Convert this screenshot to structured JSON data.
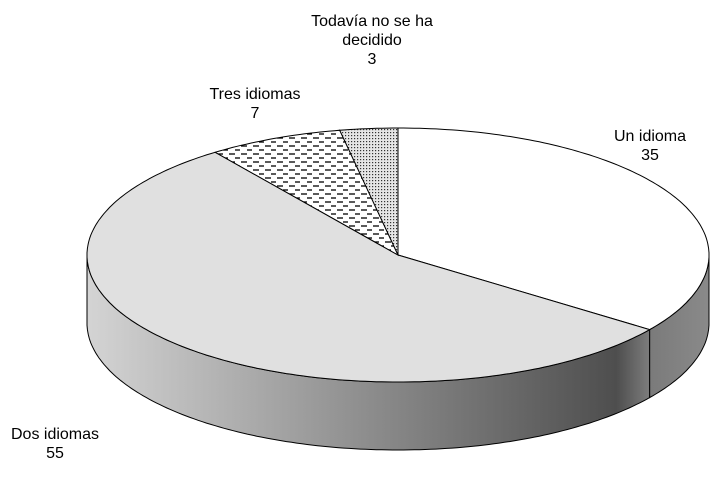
{
  "chart_data": {
    "type": "pie",
    "categories": [
      "Un idioma",
      "Dos idiomas",
      "Tres idiomas",
      "Todavía no se ha decidido"
    ],
    "values": [
      35,
      55,
      7,
      3
    ],
    "colors": [
      "#ffffff",
      "#e0e0e0",
      "#ffffff",
      "#d8d8d8"
    ]
  }
}
